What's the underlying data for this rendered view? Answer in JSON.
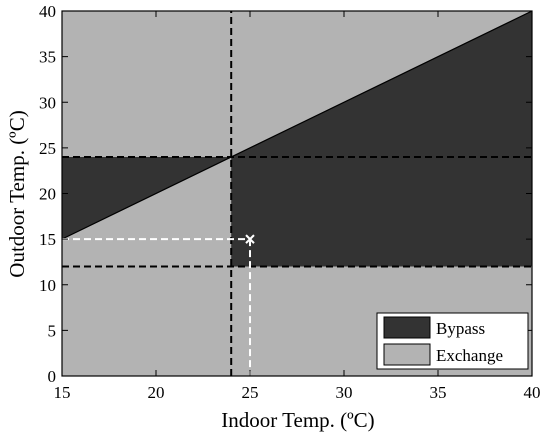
{
  "chart_data": {
    "type": "area",
    "title": "",
    "xlabel": "Indoor Temp. (ºC)",
    "ylabel": "Outdoor Temp. (ºC)",
    "xlim": [
      15,
      40
    ],
    "ylim": [
      0,
      40
    ],
    "xticks": [
      15,
      20,
      25,
      30,
      35,
      40
    ],
    "yticks": [
      0,
      5,
      10,
      15,
      20,
      25,
      30,
      35,
      40
    ],
    "grid": false,
    "legend_position": "bottom-right",
    "colors": {
      "bypass": "#333333",
      "exchange": "#b3b3b3",
      "guide_black": "#000000",
      "guide_white": "#ffffff"
    },
    "regions": [
      {
        "name": "Bypass",
        "color": "#333333",
        "polygon": [
          [
            15,
            15
          ],
          [
            24,
            24
          ],
          [
            15,
            24
          ]
        ]
      },
      {
        "name": "Bypass",
        "color": "#333333",
        "polygon": [
          [
            24,
            12
          ],
          [
            40,
            12
          ],
          [
            40,
            40
          ],
          [
            24,
            24
          ]
        ]
      },
      {
        "name": "Exchange",
        "color": "#b3b3b3",
        "polygon": [
          [
            15,
            0
          ],
          [
            40,
            0
          ],
          [
            40,
            40
          ],
          [
            15,
            40
          ]
        ]
      }
    ],
    "diagonal_line": [
      [
        15,
        15
      ],
      [
        40,
        40
      ]
    ],
    "dashed_lines": [
      {
        "orientation": "horizontal",
        "y": 24,
        "color": "black"
      },
      {
        "orientation": "horizontal",
        "y": 12,
        "color": "black"
      },
      {
        "orientation": "vertical",
        "x": 24,
        "color": "black"
      }
    ],
    "marker": {
      "x": 25,
      "y": 15,
      "symbol": "x",
      "color": "white"
    },
    "marker_guides": [
      {
        "from": [
          15,
          15
        ],
        "to": [
          25,
          15
        ],
        "color": "white"
      },
      {
        "from": [
          25,
          15
        ],
        "to": [
          25,
          0
        ],
        "color": "white"
      }
    ],
    "legend": [
      {
        "label": "Bypass",
        "color": "#333333"
      },
      {
        "label": "Exchange",
        "color": "#b3b3b3"
      }
    ]
  }
}
